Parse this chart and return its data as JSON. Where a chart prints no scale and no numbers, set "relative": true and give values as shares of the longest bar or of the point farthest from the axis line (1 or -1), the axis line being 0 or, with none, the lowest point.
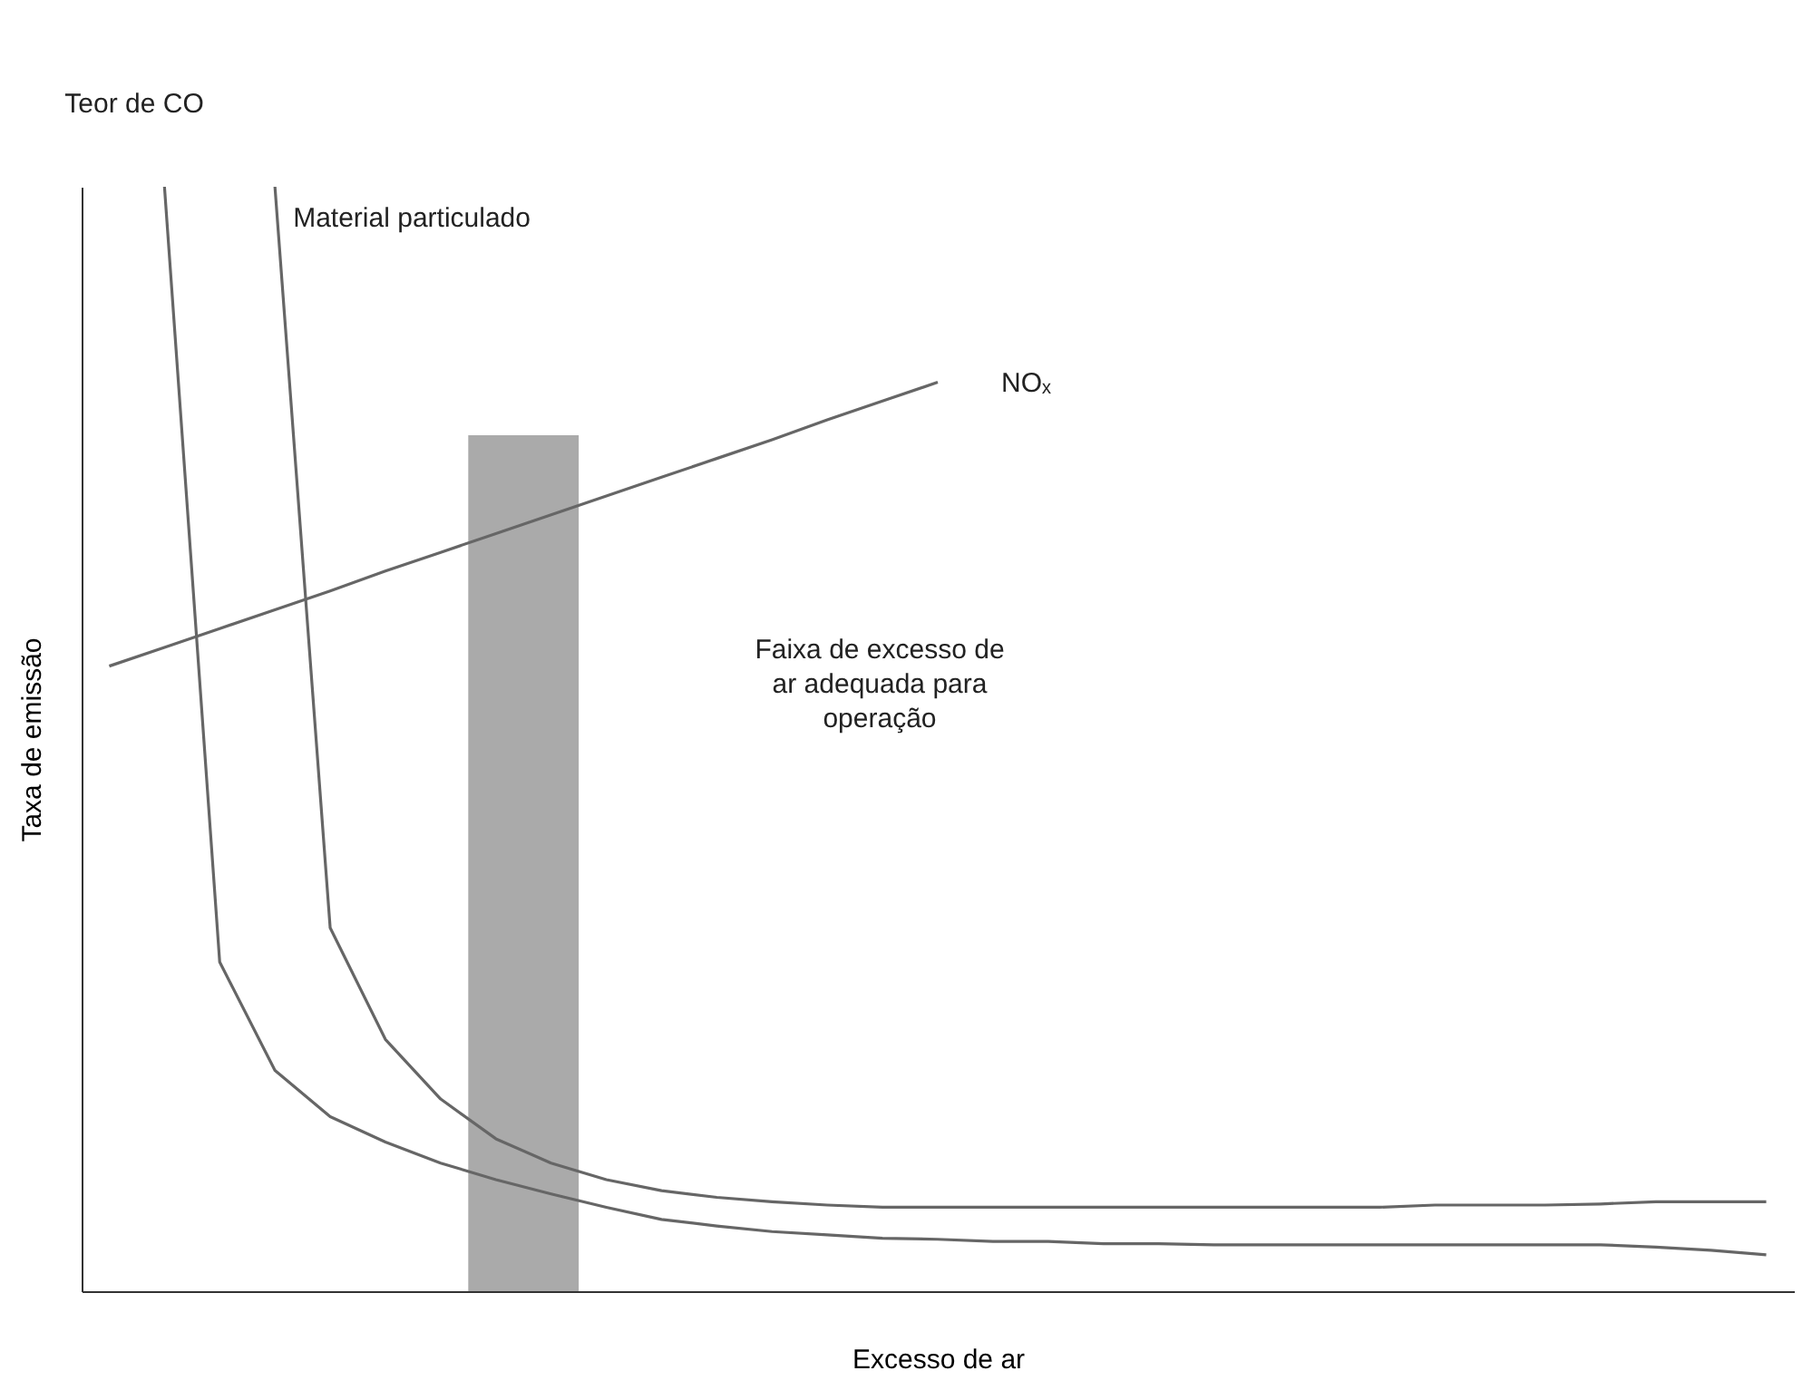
{
  "chart_data": {
    "type": "line",
    "relative": true,
    "xlabel": "Excesso de ar",
    "ylabel": "Taxa de emissão",
    "categories": [
      null,
      null,
      null,
      null,
      null,
      null,
      null,
      null,
      null,
      null,
      null,
      null,
      null,
      null,
      null,
      null,
      null,
      null,
      null,
      null,
      null,
      null,
      null,
      null,
      null,
      null,
      null,
      null,
      null,
      null,
      null
    ],
    "series": [
      {
        "name": "Teor de CO",
        "color": "#666666",
        "values": [
          null,
          1.0,
          0.298,
          0.2,
          0.158,
          0.135,
          0.116,
          0.101,
          0.088,
          0.076,
          0.065,
          0.059,
          0.054,
          0.051,
          0.048,
          0.047,
          0.045,
          0.045,
          0.043,
          0.043,
          0.042,
          0.042,
          0.042,
          0.042,
          0.042,
          0.042,
          0.042,
          0.042,
          0.04,
          0.037,
          0.033
        ]
      },
      {
        "name": "Material particulado",
        "color": "#666666",
        "values": [
          null,
          null,
          null,
          1.0,
          0.329,
          0.228,
          0.174,
          0.138,
          0.116,
          0.101,
          0.091,
          0.085,
          0.081,
          0.078,
          0.076,
          0.076,
          0.076,
          0.076,
          0.076,
          0.076,
          0.076,
          0.076,
          0.076,
          0.076,
          0.078,
          0.078,
          0.078,
          0.079,
          0.081,
          0.081,
          0.081
        ]
      },
      {
        "name": "NOₓ",
        "color": "#666666",
        "values": [
          0.566,
          0.583,
          0.6,
          0.617,
          0.634,
          0.652,
          0.669,
          0.686,
          0.703,
          0.72,
          0.737,
          0.754,
          0.771,
          0.789,
          0.806,
          0.823,
          null,
          null,
          null,
          null,
          null,
          null,
          null,
          null,
          null,
          null,
          null,
          null,
          null,
          null,
          null
        ]
      }
    ],
    "annotations": [
      "Faixa de excesso de ar adequada para operação"
    ]
  }
}
